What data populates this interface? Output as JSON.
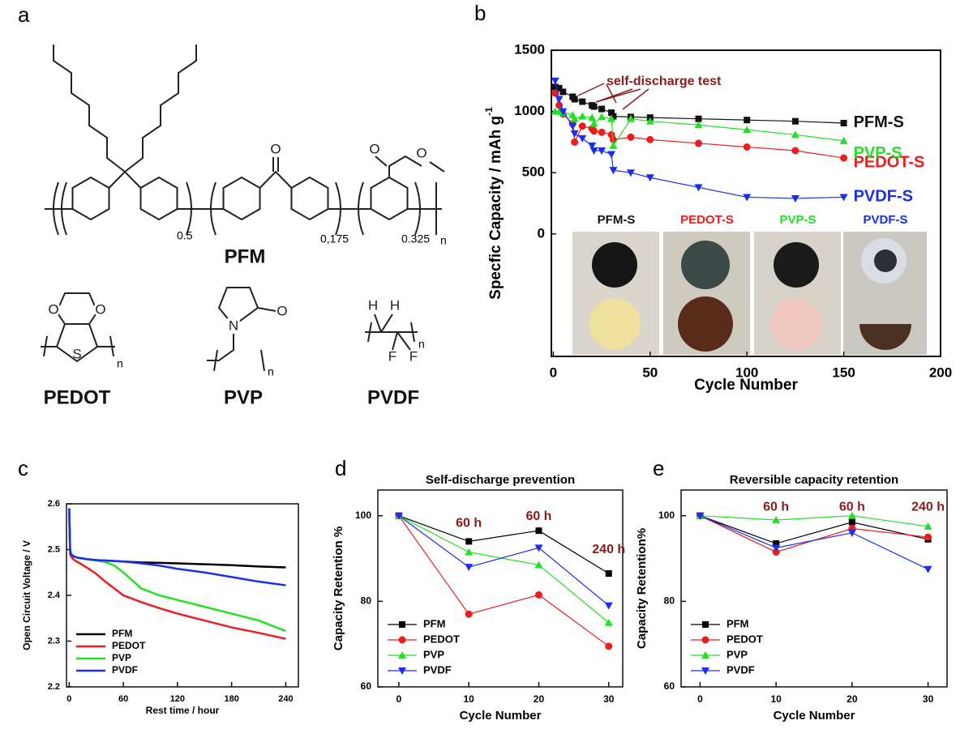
{
  "panel_a": {
    "label": "a",
    "pfm": "PFM",
    "subscripts": [
      "0.5",
      "0,175",
      "0.325"
    ],
    "repeat": "n",
    "names": [
      "PEDOT",
      "PVP",
      "PVDF"
    ],
    "atoms": {
      "o": "O",
      "s": "S",
      "n": "N",
      "h": "H",
      "f": "F"
    }
  },
  "chart_data": [
    {
      "panel": "b",
      "type": "line",
      "xlabel": "Cycle Number",
      "ylabel": "Specfic Capacity / mAh g",
      "ylabel_sup": "-1",
      "legend": "right",
      "markers": true,
      "x": [
        1,
        3,
        5,
        10,
        11,
        15,
        20,
        21,
        25,
        30,
        31,
        40,
        50,
        75,
        100,
        125,
        150
      ],
      "xlim": [
        -1,
        200
      ],
      "xticks": [
        0,
        50,
        100,
        150,
        200
      ],
      "ylim": [
        -1000,
        1500
      ],
      "yticks": [
        0,
        500,
        1000,
        1500
      ],
      "annotation": "self-discharge test",
      "inset_labels": [
        "PFM-S",
        "PEDOT-S",
        "PVP-S",
        "PVDF-S"
      ],
      "series": [
        {
          "name": "PFM-S",
          "color": "#111111",
          "marker": "square",
          "values": [
            1200,
            1190,
            1160,
            1120,
            1100,
            1080,
            1050,
            1040,
            1020,
            990,
            960,
            955,
            950,
            940,
            930,
            920,
            905
          ]
        },
        {
          "name": "PEDOT-S",
          "color": "#ee1c1c",
          "marker": "circle",
          "values": [
            1150,
            1050,
            980,
            900,
            750,
            880,
            860,
            840,
            830,
            810,
            770,
            790,
            770,
            740,
            710,
            680,
            620
          ]
        },
        {
          "name": "PVP-S",
          "color": "#22e022",
          "marker": "triangle",
          "values": [
            1000,
            1000,
            990,
            970,
            940,
            960,
            950,
            900,
            955,
            940,
            720,
            940,
            920,
            890,
            850,
            810,
            760
          ]
        },
        {
          "name": "PVDF-S",
          "color": "#1a2ef0",
          "marker": "triangle-down",
          "values": [
            1250,
            1100,
            1000,
            880,
            820,
            780,
            720,
            680,
            680,
            650,
            520,
            500,
            460,
            380,
            300,
            290,
            300
          ]
        }
      ]
    },
    {
      "panel": "c",
      "type": "line",
      "xlabel": "Rest time  / hour",
      "ylabel": "Open Circuit Voltage / V",
      "legend": "lower left",
      "markers": false,
      "x": [
        0,
        1,
        2,
        5,
        10,
        20,
        30,
        40,
        50,
        60,
        80,
        100,
        120,
        150,
        180,
        210,
        240
      ],
      "xlim": [
        -3,
        254
      ],
      "xticks": [
        0,
        60,
        120,
        180,
        240
      ],
      "ylim": [
        2.2,
        2.6
      ],
      "yticks": [
        2.2,
        2.3,
        2.4,
        2.5,
        2.6
      ],
      "series": [
        {
          "name": "PFM",
          "color": "#000000",
          "values": [
            2.59,
            2.5,
            2.49,
            2.485,
            2.482,
            2.479,
            2.477,
            2.476,
            2.475,
            2.474,
            2.472,
            2.471,
            2.47,
            2.468,
            2.466,
            2.463,
            2.461
          ]
        },
        {
          "name": "PEDOT",
          "color": "#ee1c1c",
          "values": [
            2.58,
            2.49,
            2.485,
            2.478,
            2.472,
            2.46,
            2.447,
            2.43,
            2.415,
            2.4,
            2.385,
            2.372,
            2.36,
            2.345,
            2.33,
            2.318,
            2.305
          ]
        },
        {
          "name": "PVP",
          "color": "#22e022",
          "values": [
            2.59,
            2.5,
            2.49,
            2.485,
            2.482,
            2.479,
            2.476,
            2.473,
            2.465,
            2.45,
            2.415,
            2.4,
            2.39,
            2.375,
            2.36,
            2.345,
            2.322
          ]
        },
        {
          "name": "PVDF",
          "color": "#1a2ef0",
          "values": [
            2.59,
            2.5,
            2.49,
            2.485,
            2.482,
            2.479,
            2.477,
            2.476,
            2.475,
            2.474,
            2.47,
            2.465,
            2.458,
            2.45,
            2.44,
            2.43,
            2.422
          ]
        }
      ]
    },
    {
      "panel": "d",
      "type": "line",
      "title": "Self-discharge prevention",
      "xlabel": "Cycle Number",
      "ylabel": "Capacity Retention %",
      "legend": "lower left",
      "markers": true,
      "x": [
        0,
        10,
        20,
        30
      ],
      "xlim": [
        -3,
        32
      ],
      "xticks": [
        0,
        10,
        20,
        30
      ],
      "ylim": [
        60,
        106
      ],
      "yticks": [
        60,
        80,
        100
      ],
      "annotations": [
        "60 h",
        "60 h",
        "240 h"
      ],
      "series": [
        {
          "name": "PFM",
          "color": "#000000",
          "marker": "square",
          "values": [
            100,
            94,
            96.5,
            86.5
          ]
        },
        {
          "name": "PEDOT",
          "color": "#ee1c1c",
          "marker": "circle",
          "values": [
            100,
            77,
            81.5,
            69.5
          ]
        },
        {
          "name": "PVP",
          "color": "#22e022",
          "marker": "triangle",
          "values": [
            100,
            91.5,
            88.5,
            75
          ]
        },
        {
          "name": "PVDF",
          "color": "#1a2ef0",
          "marker": "triangle-down",
          "values": [
            100,
            88,
            92.5,
            79
          ]
        }
      ]
    },
    {
      "panel": "e",
      "type": "line",
      "title": "Reversible capacity retention",
      "xlabel": "Cycle Number",
      "ylabel": "Capacity Retention%",
      "legend": "lower left",
      "markers": true,
      "x": [
        0,
        10,
        20,
        30
      ],
      "xlim": [
        -2.5,
        32.5
      ],
      "xticks": [
        0,
        10,
        20,
        30
      ],
      "ylim": [
        60,
        106
      ],
      "yticks": [
        60,
        80,
        100
      ],
      "annotations": [
        "60 h",
        "60 h",
        "240 h"
      ],
      "series": [
        {
          "name": "PFM",
          "color": "#000000",
          "marker": "square",
          "values": [
            100,
            93.5,
            98.5,
            94.5
          ]
        },
        {
          "name": "PEDOT",
          "color": "#ee1c1c",
          "marker": "circle",
          "values": [
            100,
            91.5,
            97,
            95
          ]
        },
        {
          "name": "PVP",
          "color": "#22e022",
          "marker": "triangle",
          "values": [
            100,
            99,
            100,
            97.5
          ]
        },
        {
          "name": "PVDF",
          "color": "#1a2ef0",
          "marker": "triangle-down",
          "values": [
            100,
            92.5,
            96,
            87.5
          ]
        }
      ]
    }
  ]
}
